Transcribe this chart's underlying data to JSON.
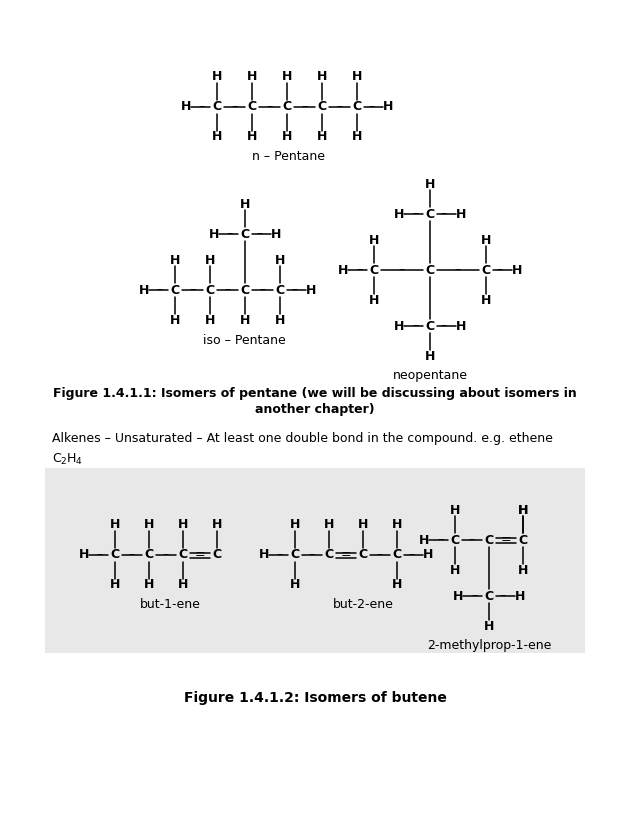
{
  "bg_color": "#ffffff",
  "box_color": "#e8e8e8",
  "fig_w": 6.3,
  "fig_h": 8.15,
  "dpi": 100,
  "title1_line1": "Figure 1.4.1.1: Isomers of pentane (we will be discussing about isomers in",
  "title1_line2": "another chapter)",
  "alkenes_line": "Alkenes – Unsaturated – At least one double bond in the compound. e.g. ethene",
  "title2": "Figure 1.4.1.2: Isomers of butene",
  "n_pentane_label": "n – Pentane",
  "iso_pentane_label": "iso – Pentane",
  "neo_pentane_label": "neopentane",
  "but1_label": "but-1-ene",
  "but2_label": "but-2-ene",
  "mp1_label": "2-methylprop-1-ene"
}
